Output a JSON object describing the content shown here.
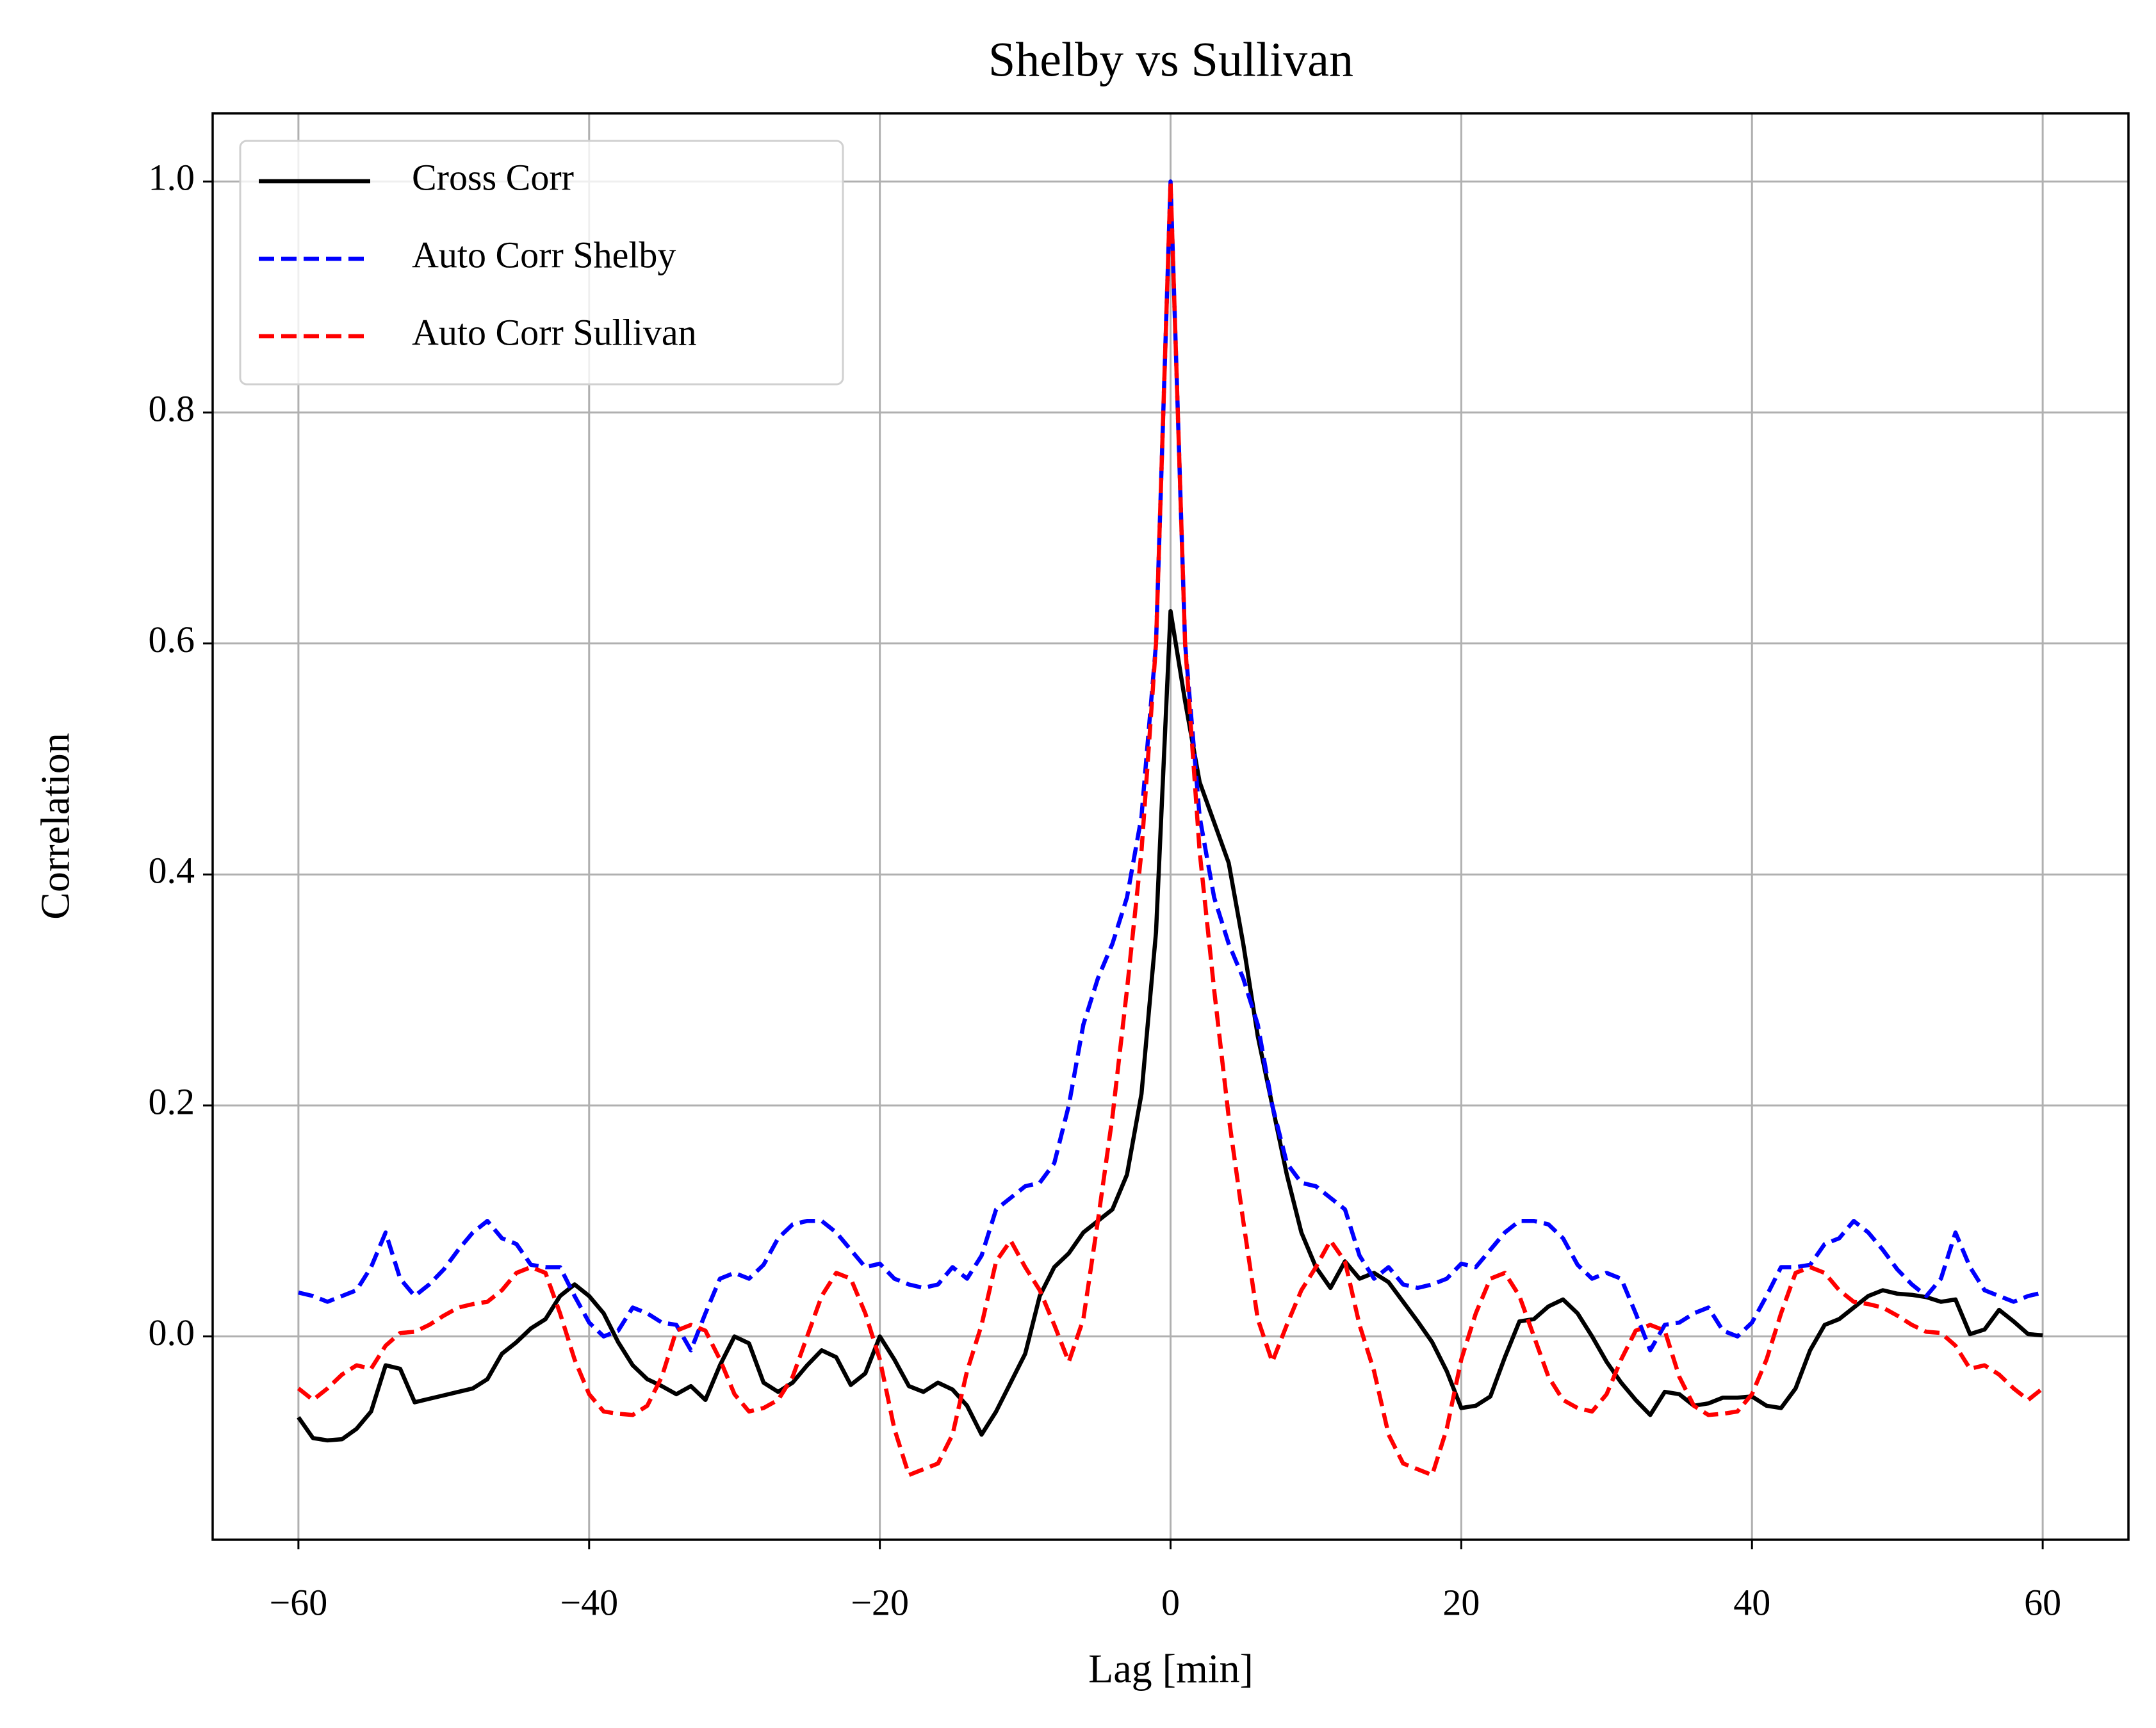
{
  "chart_data": {
    "type": "line",
    "title": "Shelby vs Sullivan",
    "xlabel": "Lag [min]",
    "ylabel": "Correlation",
    "x": [
      -60,
      -59,
      -58,
      -57,
      -56,
      -55,
      -54,
      -53,
      -52,
      -51,
      -50,
      -49,
      -48,
      -47,
      -46,
      -45,
      -44,
      -43,
      -42,
      -41,
      -40,
      -39,
      -38,
      -37,
      -36,
      -35,
      -34,
      -33,
      -32,
      -31,
      -30,
      -29,
      -28,
      -27,
      -26,
      -25,
      -24,
      -23,
      -22,
      -21,
      -20,
      -19,
      -18,
      -17,
      -16,
      -15,
      -14,
      -13,
      -12,
      -11,
      -10,
      -9,
      -8,
      -7,
      -6,
      -5,
      -4,
      -3,
      -2,
      -1,
      0,
      1,
      2,
      3,
      4,
      5,
      6,
      7,
      8,
      9,
      10,
      11,
      12,
      13,
      14,
      15,
      16,
      17,
      18,
      19,
      20,
      21,
      22,
      23,
      24,
      25,
      26,
      27,
      28,
      29,
      30,
      31,
      32,
      33,
      34,
      35,
      36,
      37,
      38,
      39,
      40,
      41,
      42,
      43,
      44,
      45,
      46,
      47,
      48,
      49,
      50,
      51,
      52,
      53,
      54,
      55,
      56,
      57,
      58,
      59,
      60
    ],
    "series": [
      {
        "name": "Cross Corr",
        "color": "#000000",
        "linestyle": "solid",
        "values": [
          -0.07,
          -0.088,
          -0.09,
          -0.089,
          -0.08,
          -0.065,
          -0.025,
          -0.028,
          -0.057,
          -0.054,
          -0.051,
          -0.048,
          -0.045,
          -0.037,
          -0.015,
          -0.005,
          0.007,
          0.015,
          0.035,
          0.045,
          0.035,
          0.02,
          -0.005,
          -0.025,
          -0.037,
          -0.043,
          -0.05,
          -0.043,
          -0.055,
          -0.025,
          0.0,
          -0.006,
          -0.04,
          -0.048,
          -0.04,
          -0.025,
          -0.012,
          -0.018,
          -0.042,
          -0.032,
          0.0,
          -0.02,
          -0.043,
          -0.048,
          -0.04,
          -0.046,
          -0.06,
          -0.085,
          -0.065,
          -0.04,
          -0.015,
          0.035,
          0.06,
          0.072,
          0.09,
          0.1,
          0.11,
          0.14,
          0.21,
          0.35,
          0.628,
          0.55,
          0.48,
          0.445,
          0.41,
          0.34,
          0.26,
          0.2,
          0.14,
          0.09,
          0.06,
          0.042,
          0.065,
          0.05,
          0.055,
          0.047,
          0.03,
          0.013,
          -0.005,
          -0.03,
          -0.062,
          -0.06,
          -0.052,
          -0.018,
          0.013,
          0.015,
          0.026,
          0.032,
          0.02,
          0.0,
          -0.022,
          -0.04,
          -0.055,
          -0.068,
          -0.048,
          -0.05,
          -0.06,
          -0.058,
          -0.053,
          -0.053,
          -0.052,
          -0.06,
          -0.062,
          -0.045,
          -0.012,
          0.01,
          0.015,
          0.025,
          0.035,
          0.04,
          0.037,
          0.036,
          0.034,
          0.03,
          0.032,
          0.002,
          0.006,
          0.023,
          0.013,
          0.002,
          0.001
        ]
      },
      {
        "name": "Auto Corr Shelby",
        "color": "#0000ff",
        "linestyle": "dashed",
        "values": [
          0.038,
          0.035,
          0.03,
          0.035,
          0.04,
          0.06,
          0.09,
          0.05,
          0.035,
          0.045,
          0.058,
          0.075,
          0.09,
          0.1,
          0.085,
          0.08,
          0.062,
          0.06,
          0.06,
          0.035,
          0.012,
          0.0,
          0.005,
          0.025,
          0.02,
          0.012,
          0.01,
          -0.012,
          0.02,
          0.05,
          0.055,
          0.05,
          0.062,
          0.085,
          0.097,
          0.1,
          0.1,
          0.09,
          0.075,
          0.06,
          0.063,
          0.05,
          0.045,
          0.042,
          0.045,
          0.06,
          0.05,
          0.07,
          0.11,
          0.12,
          0.13,
          0.133,
          0.15,
          0.2,
          0.27,
          0.31,
          0.34,
          0.38,
          0.45,
          0.6,
          1.0,
          0.6,
          0.45,
          0.38,
          0.34,
          0.31,
          0.27,
          0.2,
          0.15,
          0.133,
          0.13,
          0.12,
          0.11,
          0.07,
          0.05,
          0.06,
          0.045,
          0.042,
          0.045,
          0.05,
          0.063,
          0.06,
          0.075,
          0.09,
          0.1,
          0.1,
          0.097,
          0.085,
          0.062,
          0.05,
          0.055,
          0.05,
          0.02,
          -0.012,
          0.01,
          0.012,
          0.02,
          0.025,
          0.005,
          0.0,
          0.012,
          0.035,
          0.06,
          0.06,
          0.062,
          0.08,
          0.085,
          0.1,
          0.09,
          0.075,
          0.058,
          0.045,
          0.035,
          0.05,
          0.09,
          0.06,
          0.04,
          0.035,
          0.03,
          0.035,
          0.038
        ]
      },
      {
        "name": "Auto Corr Sullivan",
        "color": "#ff0000",
        "linestyle": "dashed",
        "values": [
          -0.045,
          -0.055,
          -0.045,
          -0.033,
          -0.025,
          -0.028,
          -0.008,
          0.003,
          0.004,
          0.01,
          0.018,
          0.025,
          0.028,
          0.03,
          0.04,
          0.055,
          0.06,
          0.055,
          0.02,
          -0.02,
          -0.05,
          -0.065,
          -0.067,
          -0.068,
          -0.06,
          -0.035,
          0.005,
          0.01,
          0.005,
          -0.02,
          -0.05,
          -0.065,
          -0.062,
          -0.055,
          -0.035,
          0.0,
          0.035,
          0.055,
          0.05,
          0.02,
          -0.02,
          -0.08,
          -0.12,
          -0.115,
          -0.11,
          -0.085,
          -0.03,
          0.01,
          0.065,
          0.083,
          0.06,
          0.04,
          0.01,
          -0.022,
          0.015,
          0.1,
          0.19,
          0.3,
          0.42,
          0.6,
          1.0,
          0.6,
          0.42,
          0.3,
          0.19,
          0.1,
          0.015,
          -0.022,
          0.01,
          0.04,
          0.06,
          0.083,
          0.065,
          0.01,
          -0.03,
          -0.085,
          -0.11,
          -0.115,
          -0.12,
          -0.08,
          -0.02,
          0.02,
          0.05,
          0.055,
          0.035,
          0.0,
          -0.035,
          -0.055,
          -0.062,
          -0.065,
          -0.05,
          -0.02,
          0.005,
          0.01,
          0.005,
          -0.035,
          -0.06,
          -0.068,
          -0.067,
          -0.065,
          -0.05,
          -0.02,
          0.02,
          0.055,
          0.06,
          0.055,
          0.04,
          0.03,
          0.028,
          0.025,
          0.018,
          0.01,
          0.004,
          0.003,
          -0.008,
          -0.028,
          -0.025,
          -0.033,
          -0.045,
          -0.055,
          -0.045
        ]
      }
    ],
    "xlim": [
      -65.9,
      65.9
    ],
    "xticks": [
      {
        "value": -60,
        "label": "−60"
      },
      {
        "value": -40,
        "label": "−40"
      },
      {
        "value": -20,
        "label": "−20"
      },
      0,
      20,
      40,
      60
    ],
    "ylim": [
      -0.176,
      1.059
    ],
    "yticks": [
      {
        "value": 0,
        "label": "0.0"
      },
      0.2,
      0.4,
      0.6,
      0.8,
      {
        "value": 1,
        "label": "1.0"
      }
    ],
    "grid": true,
    "legend": "upper left"
  }
}
